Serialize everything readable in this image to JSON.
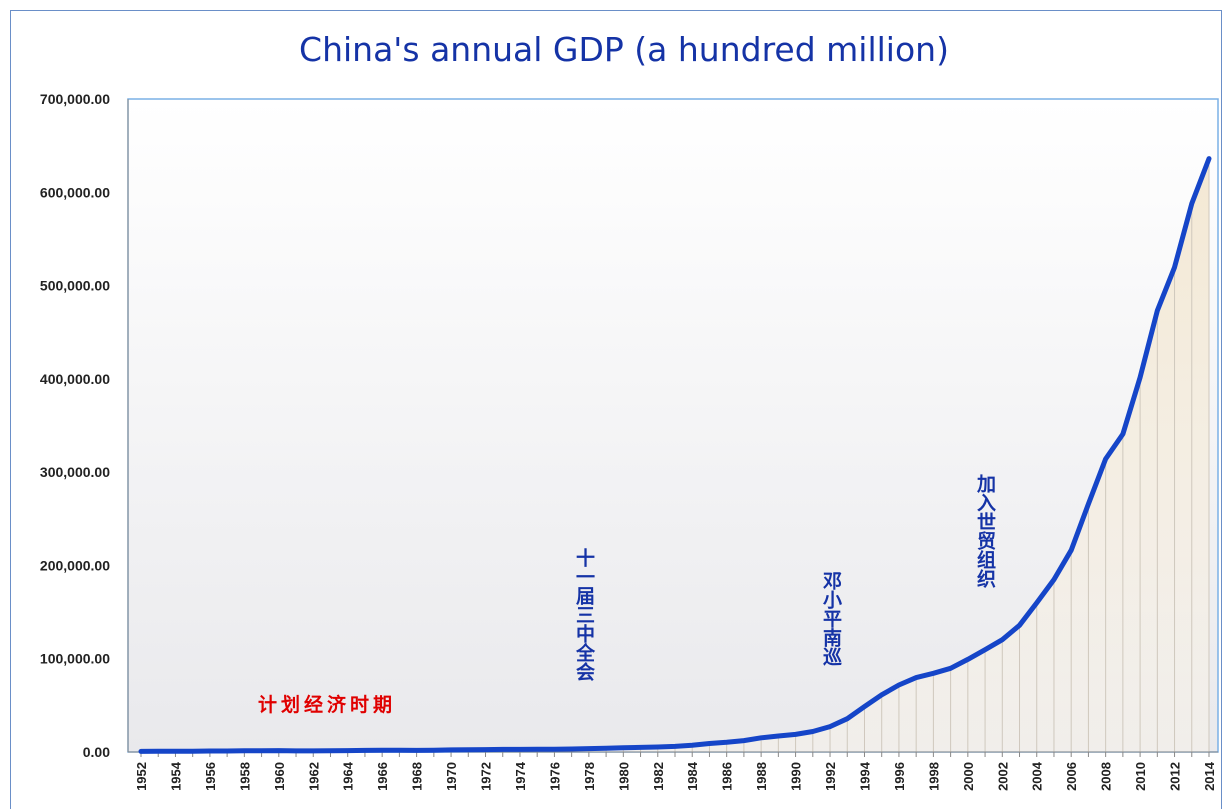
{
  "chart_data": {
    "type": "line",
    "title": "China's annual GDP (a hundred million)",
    "xlabel": "",
    "ylabel": "",
    "ylim": [
      0,
      700000
    ],
    "yticks": [
      "700,000.00",
      "600,000.00",
      "500,000.00",
      "400,000.00",
      "300,000.00",
      "200,000.00",
      "100,000.00",
      "0.00"
    ],
    "xtick_labels": [
      "1952",
      "1954",
      "1956",
      "1958",
      "1960",
      "1962",
      "1964",
      "1966",
      "1968",
      "1970",
      "1972",
      "1974",
      "1976",
      "1978",
      "1980",
      "1982",
      "1984",
      "1986",
      "1988",
      "1990",
      "1992",
      "1994",
      "1996",
      "1998",
      "2000",
      "2002",
      "2004",
      "2006",
      "2008",
      "2010",
      "2012",
      "2014"
    ],
    "x": [
      1952,
      1953,
      1954,
      1955,
      1956,
      1957,
      1958,
      1959,
      1960,
      1961,
      1962,
      1963,
      1964,
      1965,
      1966,
      1967,
      1968,
      1969,
      1970,
      1971,
      1972,
      1973,
      1974,
      1975,
      1976,
      1977,
      1978,
      1979,
      1980,
      1981,
      1982,
      1983,
      1984,
      1985,
      1986,
      1987,
      1988,
      1989,
      1990,
      1991,
      1992,
      1993,
      1994,
      1995,
      1996,
      1997,
      1998,
      1999,
      2000,
      2001,
      2002,
      2003,
      2004,
      2005,
      2006,
      2007,
      2008,
      2009,
      2010,
      2011,
      2012,
      2013,
      2014
    ],
    "series": [
      {
        "color": "#1545c8",
        "values": [
          679,
          824,
          859,
          911,
          1030,
          1071,
          1312,
          1447,
          1470,
          1232,
          1162,
          1248,
          1470,
          1734,
          1888,
          1794,
          1744,
          1962,
          2280,
          2457,
          2552,
          2756,
          2828,
          3039,
          2989,
          3250,
          3679,
          4101,
          4588,
          4936,
          5373,
          6021,
          7279,
          9099,
          10376,
          12175,
          15180,
          17180,
          18873,
          22006,
          27195,
          35673,
          48638,
          61340,
          71814,
          79715,
          84402,
          89677,
          99215,
          109655,
          120333,
          135823,
          159878,
          184937,
          216314,
          265810,
          314045,
          340903,
          401513,
          473104,
          519470,
          588019,
          636139
        ]
      }
    ],
    "annotations": [
      {
        "text": "计划经济时期",
        "color": "#e00000"
      },
      {
        "text": "十一届三中全会",
        "color": "#1533a6"
      },
      {
        "text": "邓小平南巡",
        "color": "#1533a6"
      },
      {
        "text": "加入世贸组织",
        "color": "#1533a6"
      }
    ],
    "grid": false,
    "legend": "none"
  }
}
